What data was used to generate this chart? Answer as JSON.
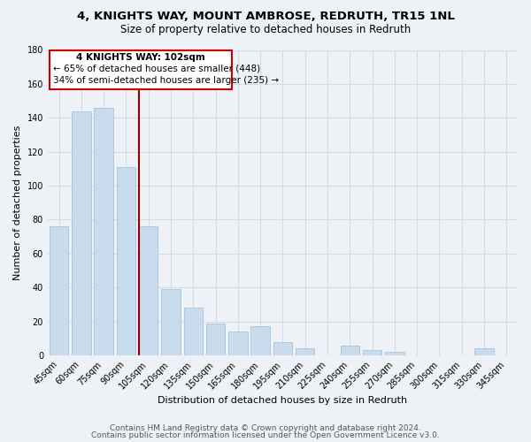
{
  "title": "4, KNIGHTS WAY, MOUNT AMBROSE, REDRUTH, TR15 1NL",
  "subtitle": "Size of property relative to detached houses in Redruth",
  "xlabel": "Distribution of detached houses by size in Redruth",
  "ylabel": "Number of detached properties",
  "bar_labels": [
    "45sqm",
    "60sqm",
    "75sqm",
    "90sqm",
    "105sqm",
    "120sqm",
    "135sqm",
    "150sqm",
    "165sqm",
    "180sqm",
    "195sqm",
    "210sqm",
    "225sqm",
    "240sqm",
    "255sqm",
    "270sqm",
    "285sqm",
    "300sqm",
    "315sqm",
    "330sqm",
    "345sqm"
  ],
  "bar_values": [
    76,
    144,
    146,
    111,
    76,
    39,
    28,
    19,
    14,
    17,
    8,
    4,
    0,
    6,
    3,
    2,
    0,
    0,
    0,
    4,
    0
  ],
  "bar_color": "#c8dced",
  "bar_edge_color": "#a8c4de",
  "redline_index": 4,
  "annotation_label": "4 KNIGHTS WAY: 102sqm",
  "annotation_line1": "← 65% of detached houses are smaller (448)",
  "annotation_line2": "34% of semi-detached houses are larger (235) →",
  "annotation_box_color": "#ffffff",
  "annotation_box_edge": "#cc0000",
  "redline_color": "#8b0000",
  "ylim": [
    0,
    180
  ],
  "yticks": [
    0,
    20,
    40,
    60,
    80,
    100,
    120,
    140,
    160,
    180
  ],
  "footer1": "Contains HM Land Registry data © Crown copyright and database right 2024.",
  "footer2": "Contains public sector information licensed under the Open Government Licence v3.0.",
  "background_color": "#eef2f7",
  "plot_bg_color": "#eef2f7",
  "grid_color": "#d0dce8",
  "title_fontsize": 9.5,
  "subtitle_fontsize": 8.5,
  "axis_label_fontsize": 8,
  "tick_fontsize": 7,
  "annotation_fontsize": 7.5,
  "footer_fontsize": 6.5
}
